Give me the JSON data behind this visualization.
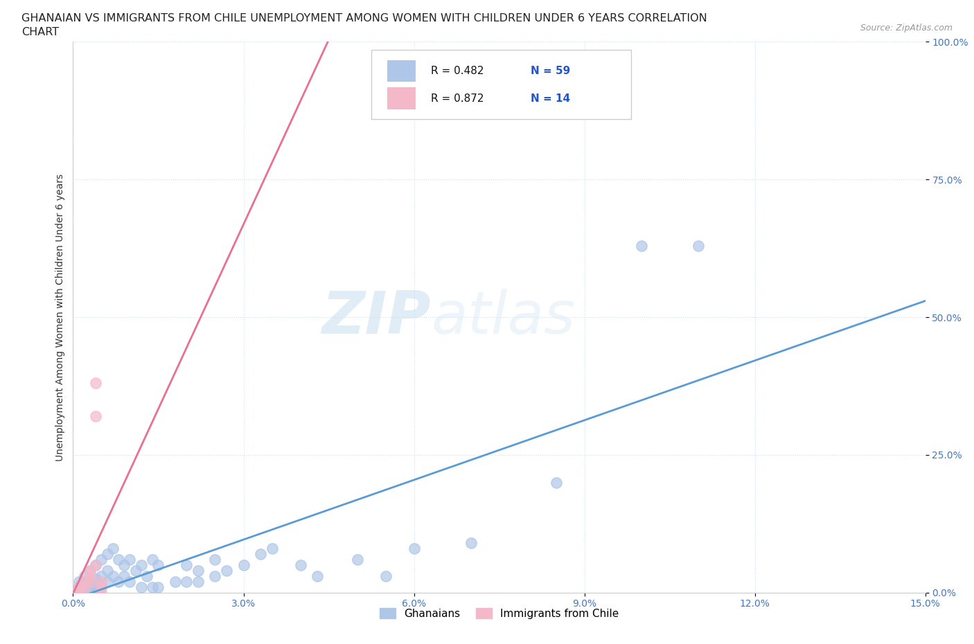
{
  "title_line1": "GHANAIAN VS IMMIGRANTS FROM CHILE UNEMPLOYMENT AMONG WOMEN WITH CHILDREN UNDER 6 YEARS CORRELATION",
  "title_line2": "CHART",
  "source_text": "Source: ZipAtlas.com",
  "ylabel": "Unemployment Among Women with Children Under 6 years",
  "xlabel": "",
  "xmin": 0.0,
  "xmax": 0.15,
  "ymin": 0.0,
  "ymax": 1.0,
  "xticks": [
    0.0,
    0.03,
    0.06,
    0.09,
    0.12,
    0.15
  ],
  "yticks": [
    0.0,
    0.25,
    0.5,
    0.75,
    1.0
  ],
  "ytick_labels": [
    "0.0%",
    "25.0%",
    "50.0%",
    "75.0%",
    "100.0%"
  ],
  "xtick_labels": [
    "0.0%",
    "3.0%",
    "6.0%",
    "9.0%",
    "12.0%",
    "15.0%"
  ],
  "ghanaian_color": "#aec6e8",
  "chile_color": "#f5b8c8",
  "ghanaian_line_color": "#5b9bd5",
  "chile_line_color": "#e87090",
  "R_ghanaian": 0.482,
  "N_ghanaian": 59,
  "R_chile": 0.872,
  "N_chile": 14,
  "watermark_zip": "ZIP",
  "watermark_atlas": "atlas",
  "legend_label_1": "Ghanaians",
  "legend_label_2": "Immigrants from Chile",
  "ghanaian_scatter": [
    [
      0.0,
      0.0
    ],
    [
      0.0,
      0.005
    ],
    [
      0.001,
      0.0
    ],
    [
      0.001,
      0.01
    ],
    [
      0.001,
      0.02
    ],
    [
      0.002,
      0.0
    ],
    [
      0.002,
      0.01
    ],
    [
      0.002,
      0.02
    ],
    [
      0.002,
      0.03
    ],
    [
      0.003,
      0.0
    ],
    [
      0.003,
      0.01
    ],
    [
      0.003,
      0.02
    ],
    [
      0.003,
      0.04
    ],
    [
      0.004,
      0.0
    ],
    [
      0.004,
      0.015
    ],
    [
      0.004,
      0.025
    ],
    [
      0.004,
      0.05
    ],
    [
      0.005,
      0.01
    ],
    [
      0.005,
      0.03
    ],
    [
      0.005,
      0.06
    ],
    [
      0.006,
      0.02
    ],
    [
      0.006,
      0.04
    ],
    [
      0.006,
      0.07
    ],
    [
      0.007,
      0.03
    ],
    [
      0.007,
      0.08
    ],
    [
      0.008,
      0.02
    ],
    [
      0.008,
      0.06
    ],
    [
      0.009,
      0.03
    ],
    [
      0.009,
      0.05
    ],
    [
      0.01,
      0.02
    ],
    [
      0.01,
      0.06
    ],
    [
      0.011,
      0.04
    ],
    [
      0.012,
      0.01
    ],
    [
      0.012,
      0.05
    ],
    [
      0.013,
      0.03
    ],
    [
      0.014,
      0.01
    ],
    [
      0.014,
      0.06
    ],
    [
      0.015,
      0.01
    ],
    [
      0.015,
      0.05
    ],
    [
      0.018,
      0.02
    ],
    [
      0.02,
      0.02
    ],
    [
      0.02,
      0.05
    ],
    [
      0.022,
      0.02
    ],
    [
      0.022,
      0.04
    ],
    [
      0.025,
      0.03
    ],
    [
      0.025,
      0.06
    ],
    [
      0.027,
      0.04
    ],
    [
      0.03,
      0.05
    ],
    [
      0.033,
      0.07
    ],
    [
      0.035,
      0.08
    ],
    [
      0.04,
      0.05
    ],
    [
      0.043,
      0.03
    ],
    [
      0.05,
      0.06
    ],
    [
      0.055,
      0.03
    ],
    [
      0.06,
      0.08
    ],
    [
      0.07,
      0.09
    ],
    [
      0.085,
      0.2
    ],
    [
      0.1,
      0.63
    ],
    [
      0.11,
      0.63
    ]
  ],
  "chile_scatter": [
    [
      0.0,
      0.0
    ],
    [
      0.001,
      0.0
    ],
    [
      0.001,
      0.01
    ],
    [
      0.002,
      0.01
    ],
    [
      0.002,
      0.02
    ],
    [
      0.003,
      0.02
    ],
    [
      0.003,
      0.03
    ],
    [
      0.003,
      0.04
    ],
    [
      0.004,
      0.05
    ],
    [
      0.004,
      0.38
    ],
    [
      0.004,
      0.32
    ],
    [
      0.005,
      0.0
    ],
    [
      0.005,
      0.01
    ],
    [
      0.005,
      0.02
    ]
  ]
}
